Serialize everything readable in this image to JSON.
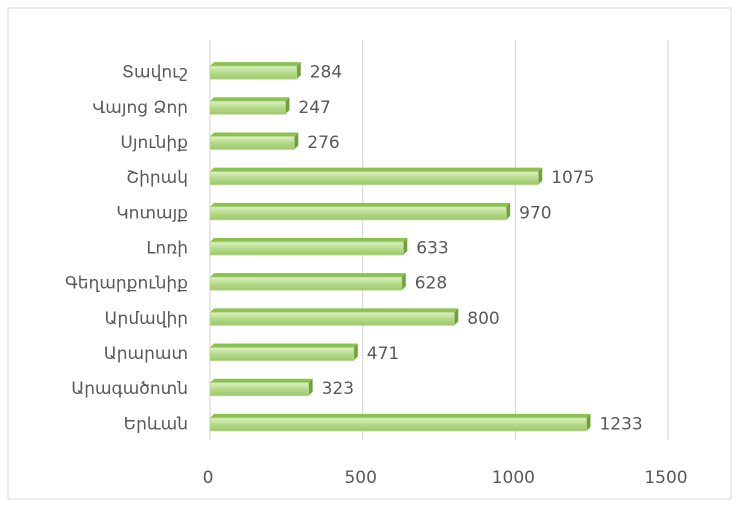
{
  "chart_data": {
    "type": "bar",
    "orientation": "horizontal",
    "categories": [
      "Տավուշ",
      "Վայոց Ձոր",
      "Սյունիք",
      "Շիրակ",
      "Կոտայք",
      "Լոռի",
      "Գեղարքունիք",
      "Արմավիր",
      "Արարատ",
      "Արագածոտն",
      "Երևան"
    ],
    "values": [
      284,
      247,
      276,
      1075,
      970,
      633,
      628,
      800,
      471,
      323,
      1233
    ],
    "color": "#b5da8a",
    "xlim": [
      0,
      1500
    ],
    "xticks": [
      0,
      500,
      1000,
      1500
    ],
    "grid": true
  }
}
